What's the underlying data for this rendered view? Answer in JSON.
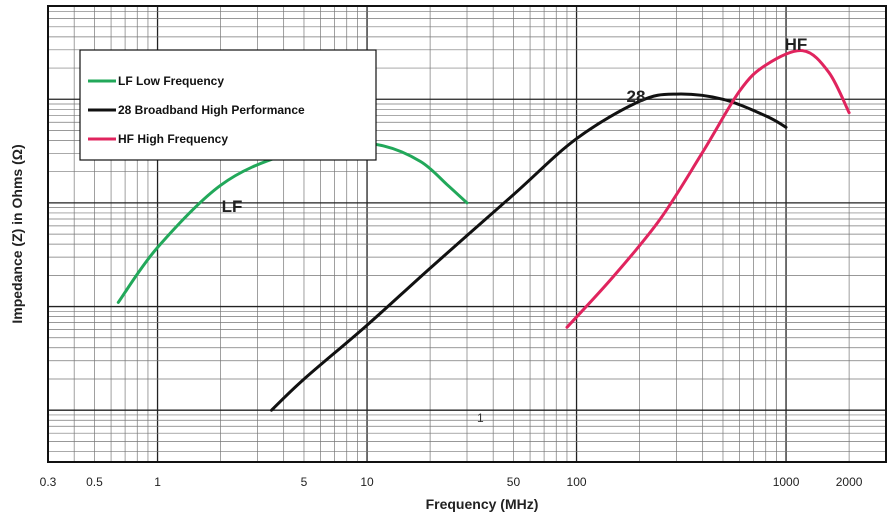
{
  "chart_data": {
    "type": "line",
    "title": "",
    "xlabel": "Frequency (MHz)",
    "ylabel": "Impedance (Z) in Ohms (Ω)",
    "x_scale": "log",
    "y_scale": "log",
    "xlim": [
      0.3,
      3000
    ],
    "x_tick_labels": [
      "0.3",
      "0.5",
      "1",
      "5",
      "10",
      "50",
      "100",
      "1000",
      "2000"
    ],
    "x_tick_values": [
      0.3,
      0.5,
      1,
      5,
      10,
      50,
      100,
      1000,
      2000
    ],
    "y_tick_labels": [],
    "grid": true,
    "legend_position": "top-left",
    "series": [
      {
        "name": "LF Low Frequency",
        "short_label": "LF",
        "color": "#22a85a",
        "x": [
          0.65,
          1,
          2,
          4,
          8,
          12,
          18,
          24,
          30
        ],
        "y": [
          1.04,
          1.57,
          2.17,
          2.46,
          2.57,
          2.55,
          2.4,
          2.18,
          2.0
        ]
      },
      {
        "name": "28 Broadband High Performance",
        "short_label": "28",
        "color": "#111111",
        "x": [
          3.5,
          5,
          10,
          20,
          50,
          100,
          200,
          300,
          500,
          800,
          1000
        ],
        "y": [
          0.0,
          0.3,
          0.82,
          1.37,
          2.08,
          2.62,
          2.98,
          3.05,
          3.0,
          2.84,
          2.73
        ]
      },
      {
        "name": "HF High Frequency",
        "short_label": "HF",
        "color": "#e0245e",
        "x": [
          90,
          150,
          250,
          400,
          600,
          800,
          1200,
          1600,
          2000
        ],
        "y": [
          0.8,
          1.29,
          1.84,
          2.49,
          3.08,
          3.33,
          3.47,
          3.26,
          2.87
        ]
      }
    ],
    "annotations": [
      {
        "text": "1",
        "x": 30,
        "y": 0.0
      }
    ]
  }
}
